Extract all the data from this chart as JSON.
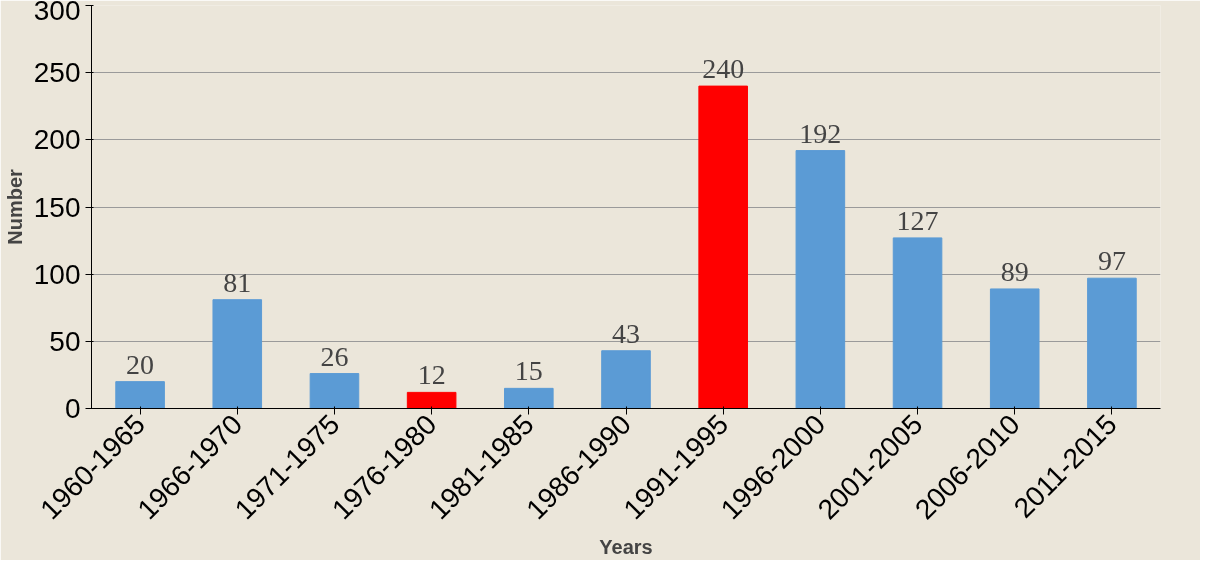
{
  "chart_data": {
    "type": "bar",
    "xlabel": "Years",
    "ylabel": "Number",
    "categories": [
      "1960-1965",
      "1966-1970",
      "1971-1975",
      "1976-1980",
      "1981-1985",
      "1986-1990",
      "1991-1995",
      "1996-2000",
      "2001-2005",
      "2006-2010",
      "2011-2015"
    ],
    "values": [
      20,
      81,
      26,
      12,
      15,
      43,
      240,
      192,
      127,
      89,
      97
    ],
    "colors": [
      "#5b9bd5",
      "#5b9bd5",
      "#5b9bd5",
      "#ff0000",
      "#5b9bd5",
      "#5b9bd5",
      "#ff0000",
      "#5b9bd5",
      "#5b9bd5",
      "#5b9bd5",
      "#5b9bd5"
    ],
    "ylim": [
      0,
      300
    ],
    "yticks": [
      0,
      50,
      100,
      150,
      200,
      250,
      300
    ],
    "grid": "y",
    "data_labels": true
  }
}
